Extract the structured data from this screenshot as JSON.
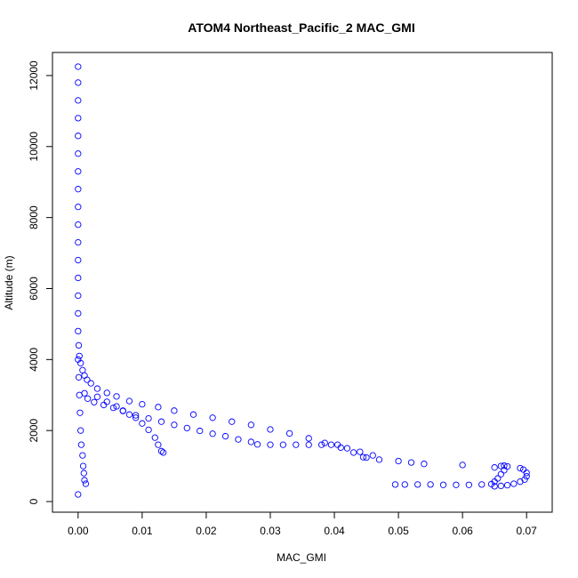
{
  "chart_data": {
    "type": "scatter",
    "title": "ATOM4 Northeast_Pacific_2 MAC_GMI",
    "xlabel": "MAC_GMI",
    "ylabel": "Altitude (m)",
    "xlim": [
      -0.004,
      0.074
    ],
    "ylim": [
      -300,
      12650
    ],
    "x_ticks": [
      "0.00",
      "0.01",
      "0.02",
      "0.03",
      "0.04",
      "0.05",
      "0.06",
      "0.07"
    ],
    "x_tick_values": [
      0,
      0.01,
      0.02,
      0.03,
      0.04,
      0.05,
      0.06,
      0.07
    ],
    "y_ticks": [
      "0",
      "2000",
      "4000",
      "6000",
      "8000",
      "10000",
      "12000"
    ],
    "y_tick_values": [
      0,
      2000,
      4000,
      6000,
      8000,
      10000,
      12000
    ],
    "grid": false,
    "marker": "open-circle",
    "color": "#0000ff",
    "series": [
      {
        "points": [
          [
            0.0,
            12250
          ],
          [
            0.0,
            11800
          ],
          [
            0.0,
            11300
          ],
          [
            0.0,
            10800
          ],
          [
            0.0,
            10300
          ],
          [
            0.0,
            9800
          ],
          [
            0.0,
            9300
          ],
          [
            0.0,
            8800
          ],
          [
            0.0,
            8300
          ],
          [
            0.0,
            7800
          ],
          [
            0.0,
            7300
          ],
          [
            0.0,
            6800
          ],
          [
            0.0,
            6300
          ],
          [
            0.0,
            5800
          ],
          [
            0.0,
            5300
          ],
          [
            0.0,
            4800
          ],
          [
            0.0001,
            4400
          ],
          [
            0.0002,
            4100
          ],
          [
            0.0004,
            3900
          ],
          [
            0.0007,
            3700
          ],
          [
            0.001,
            3550
          ],
          [
            0.0014,
            3430
          ],
          [
            0.002,
            3330
          ],
          [
            0.003,
            3180
          ],
          [
            0.0045,
            3060
          ],
          [
            0.006,
            2960
          ],
          [
            0.008,
            2830
          ],
          [
            0.01,
            2740
          ],
          [
            0.0125,
            2660
          ],
          [
            0.015,
            2560
          ],
          [
            0.018,
            2450
          ],
          [
            0.021,
            2360
          ],
          [
            0.024,
            2250
          ],
          [
            0.027,
            2160
          ],
          [
            0.03,
            2030
          ],
          [
            0.033,
            1920
          ],
          [
            0.036,
            1780
          ],
          [
            0.0385,
            1650
          ],
          [
            0.041,
            1520
          ],
          [
            0.043,
            1380
          ],
          [
            0.045,
            1240
          ],
          [
            0.047,
            1180
          ],
          [
            0.05,
            1140
          ],
          [
            0.052,
            1100
          ],
          [
            0.054,
            1060
          ],
          [
            0.06,
            1030
          ],
          [
            0.065,
            960
          ],
          [
            0.066,
            1000
          ]
        ]
      },
      {
        "points": [
          [
            0.001,
            3050
          ],
          [
            0.0015,
            2900
          ],
          [
            0.0025,
            2800
          ],
          [
            0.004,
            2720
          ],
          [
            0.0055,
            2640
          ],
          [
            0.007,
            2550
          ],
          [
            0.009,
            2430
          ],
          [
            0.011,
            2340
          ],
          [
            0.013,
            2250
          ],
          [
            0.015,
            2160
          ],
          [
            0.017,
            2070
          ],
          [
            0.019,
            1990
          ],
          [
            0.021,
            1910
          ],
          [
            0.023,
            1840
          ],
          [
            0.025,
            1750
          ],
          [
            0.027,
            1680
          ],
          [
            0.028,
            1610
          ],
          [
            0.03,
            1600
          ],
          [
            0.032,
            1600
          ],
          [
            0.034,
            1600
          ],
          [
            0.036,
            1600
          ],
          [
            0.038,
            1600
          ],
          [
            0.0395,
            1600
          ],
          [
            0.0405,
            1600
          ],
          [
            0.042,
            1500
          ],
          [
            0.044,
            1400
          ],
          [
            0.0445,
            1250
          ],
          [
            0.046,
            1300
          ]
        ]
      },
      {
        "points": [
          [
            0.003,
            2950
          ],
          [
            0.0045,
            2810
          ],
          [
            0.006,
            2680
          ],
          [
            0.007,
            2560
          ],
          [
            0.008,
            2450
          ],
          [
            0.009,
            2360
          ],
          [
            0.01,
            2200
          ],
          [
            0.011,
            2020
          ],
          [
            0.012,
            1800
          ],
          [
            0.0125,
            1600
          ],
          [
            0.013,
            1420
          ],
          [
            0.0133,
            1380
          ]
        ]
      },
      {
        "points": [
          [
            0.0495,
            480
          ],
          [
            0.051,
            480
          ],
          [
            0.053,
            480
          ],
          [
            0.055,
            480
          ],
          [
            0.057,
            470
          ],
          [
            0.059,
            470
          ],
          [
            0.061,
            470
          ],
          [
            0.063,
            480
          ],
          [
            0.0645,
            490
          ],
          [
            0.065,
            560
          ],
          [
            0.0655,
            650
          ],
          [
            0.066,
            770
          ],
          [
            0.0665,
            880
          ],
          [
            0.067,
            990
          ],
          [
            0.0665,
            1010
          ],
          [
            0.065,
            430
          ],
          [
            0.066,
            440
          ],
          [
            0.067,
            460
          ],
          [
            0.068,
            500
          ],
          [
            0.069,
            560
          ],
          [
            0.0697,
            620
          ],
          [
            0.07,
            710
          ],
          [
            0.07,
            810
          ],
          [
            0.0695,
            900
          ],
          [
            0.069,
            940
          ]
        ]
      },
      {
        "points": [
          [
            0.0,
            4000
          ],
          [
            0.0001,
            3500
          ],
          [
            0.0002,
            3000
          ],
          [
            0.0003,
            2500
          ],
          [
            0.0004,
            2000
          ],
          [
            0.0005,
            1600
          ],
          [
            0.0007,
            1300
          ],
          [
            0.0008,
            1000
          ],
          [
            0.0009,
            800
          ],
          [
            0.001,
            600
          ],
          [
            0.0012,
            500
          ],
          [
            0.0,
            200
          ]
        ]
      }
    ]
  }
}
